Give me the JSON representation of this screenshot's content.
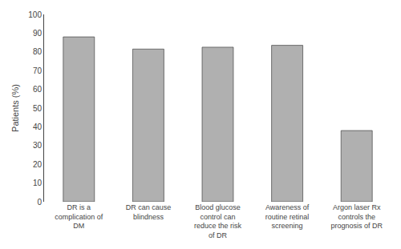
{
  "chart_data": {
    "type": "bar",
    "ylabel": "Patients (%)",
    "categories": [
      "DR is a\ncomplication of\nDM",
      "DR can cause\nblindness",
      "Blood glucose\ncontrol can\nreduce the risk\nof DR",
      "Awareness of\nroutine retinal\nscreening",
      "Argon laser Rx\ncontrols the\nprognosis of DR"
    ],
    "values": [
      88,
      81.5,
      82.5,
      83.5,
      38
    ],
    "color": "#b0b0b0",
    "ylim": [
      0,
      100
    ],
    "yticks": [
      0,
      10,
      20,
      30,
      40,
      50,
      60,
      70,
      80,
      90,
      100
    ],
    "grid": false
  }
}
